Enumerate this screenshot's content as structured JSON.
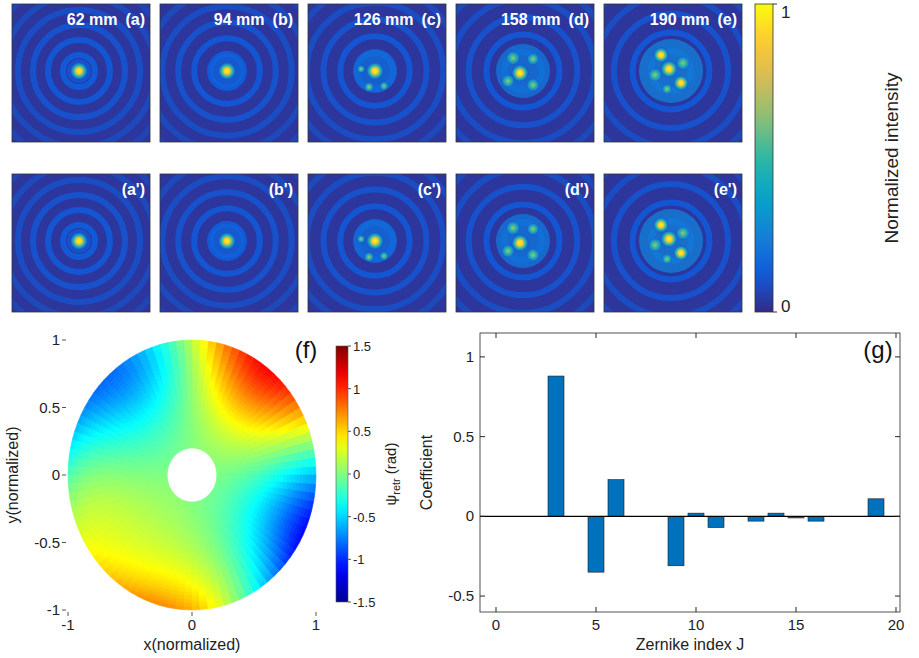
{
  "intensity_figure": {
    "rows": [
      {
        "distances": [
          "62 mm",
          "94 mm",
          "126 mm",
          "158 mm",
          "190 mm"
        ],
        "labels": [
          "(a)",
          "(b)",
          "(c)",
          "(d)",
          "(e)"
        ]
      },
      {
        "labels": [
          "(a')",
          "(b')",
          "(c')",
          "(d')",
          "(e')"
        ]
      }
    ],
    "colorbar": {
      "label": "Normalized intensity",
      "lim": [
        0,
        1
      ],
      "ticks": [
        0,
        1
      ]
    }
  },
  "chart_data": [
    {
      "type": "phase_map",
      "label": "(f)",
      "x_label": "x(normalized)",
      "y_label": "y(normalized)",
      "xlim": [
        -1,
        1
      ],
      "ylim": [
        -1,
        1
      ],
      "xticks": [
        -1,
        0,
        1
      ],
      "yticks": [
        -1,
        -0.5,
        0,
        0.5,
        1
      ],
      "inner_radius": 0.2,
      "colorbar": {
        "symbol": "ψ",
        "subscript": "retr",
        "unit": "(rad)",
        "lim": [
          -1.5,
          1.5
        ],
        "ticks": [
          -1.5,
          -1,
          -0.5,
          0,
          0.5,
          1,
          1.5
        ]
      }
    },
    {
      "type": "bar",
      "label": "(g)",
      "x_label": "Zernike index J",
      "y_label": "Coefficient",
      "x": [
        0,
        1,
        2,
        3,
        4,
        5,
        6,
        7,
        8,
        9,
        10,
        11,
        12,
        13,
        14,
        15,
        16,
        17,
        18,
        19,
        20
      ],
      "values": [
        0,
        0,
        0,
        0.88,
        0,
        -0.35,
        0.23,
        0,
        0,
        -0.31,
        0.02,
        -0.07,
        0,
        -0.03,
        0.02,
        -0.01,
        -0.03,
        0,
        0,
        0.11,
        0
      ],
      "color": "#0072bd",
      "xlim": [
        -0.8,
        20.2
      ],
      "ylim": [
        -0.6,
        1.15
      ],
      "xticks": [
        0,
        5,
        10,
        15,
        20
      ],
      "yticks": [
        -0.5,
        0,
        0.5,
        1
      ]
    }
  ]
}
